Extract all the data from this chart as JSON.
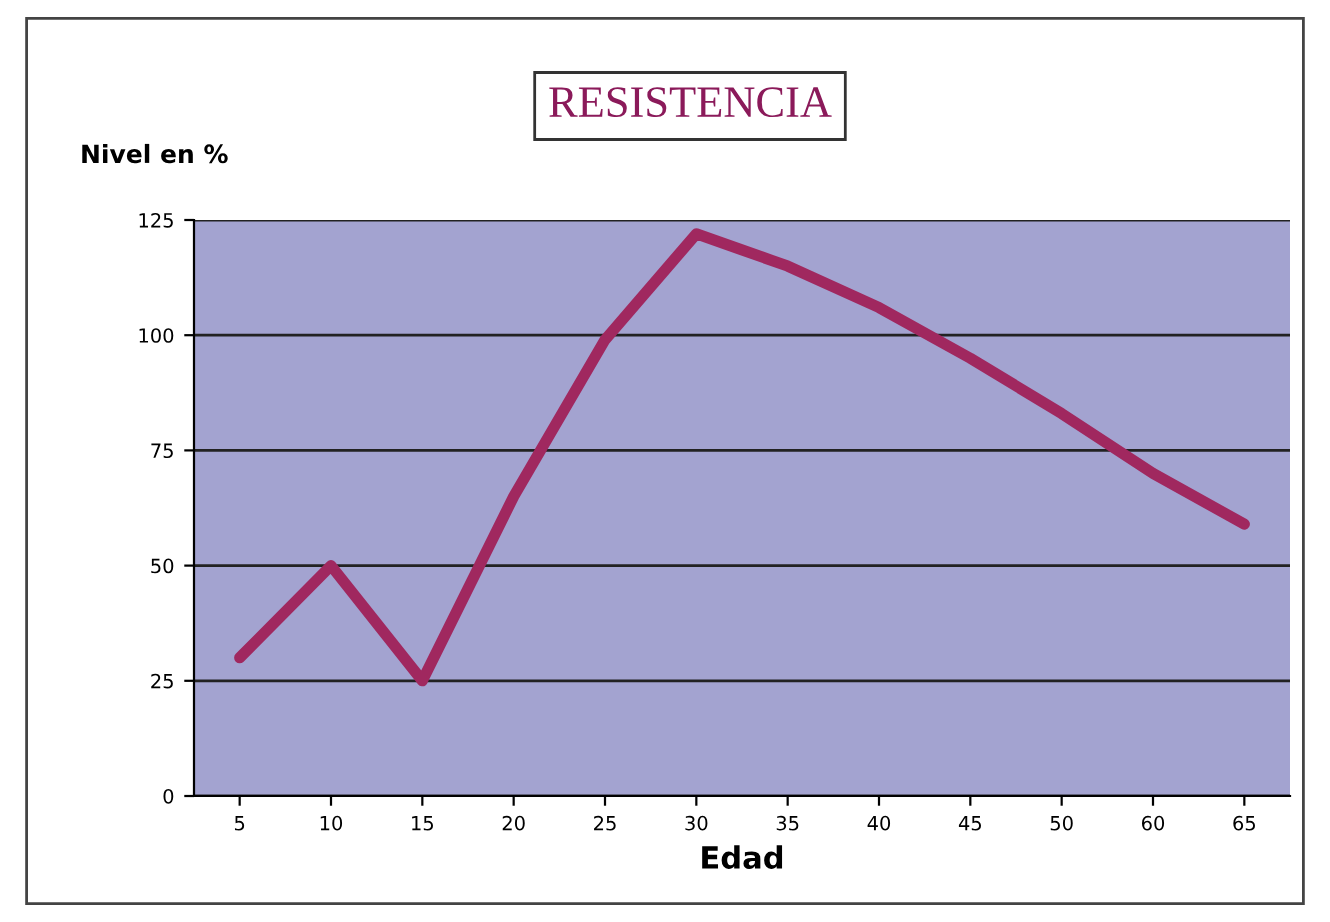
{
  "chart_data": {
    "type": "line",
    "title": "RESISTENCIA",
    "ylabel": "Nivel en %",
    "xlabel": "Edad",
    "categories": [
      "5",
      "10",
      "15",
      "20",
      "25",
      "30",
      "35",
      "40",
      "45",
      "50",
      "60",
      "65"
    ],
    "series": [
      {
        "color": "#a0285f",
        "values": [
          30,
          50,
          25,
          65,
          99,
          122,
          115,
          106,
          95,
          83,
          70,
          59
        ]
      }
    ],
    "ylim": [
      0,
      125
    ],
    "yticks": [
      0,
      25,
      50,
      75,
      100,
      125
    ],
    "grid": "y",
    "marker": "none",
    "line_style": "solid",
    "legend": false
  }
}
